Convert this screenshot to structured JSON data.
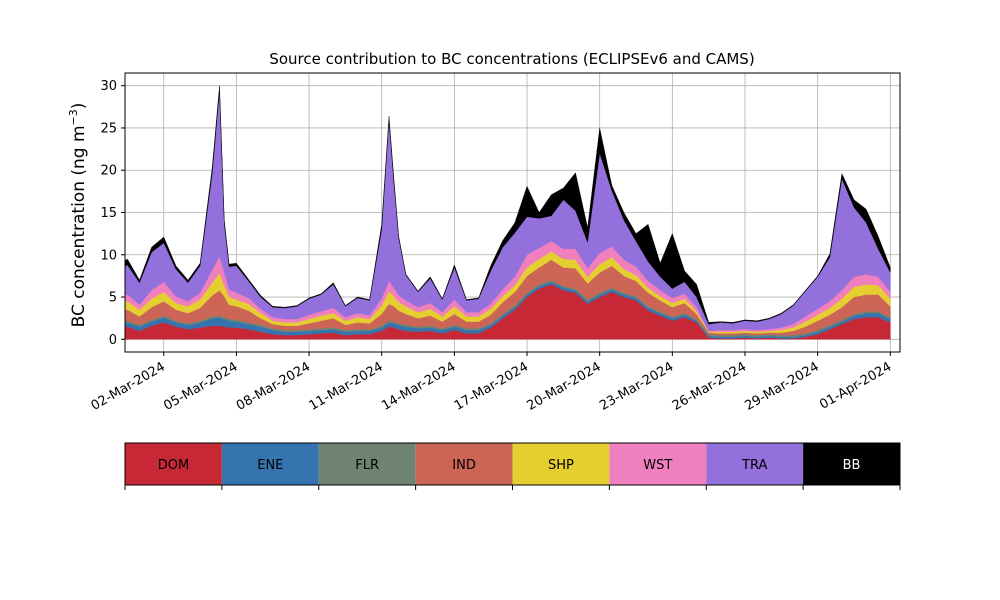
{
  "chart_data": {
    "type": "area",
    "title": "Source contribution to BC concentrations (ECLIPSEv6 and CAMS)",
    "xlabel": "",
    "ylabel": "BC concentration (ng m⁻³)",
    "ylabel_main": "BC concentration (ng m",
    "ylabel_sup": "−3",
    "ylabel_close": ")",
    "xlim": [
      -0.6,
      31.4
    ],
    "ylim": [
      -1.5,
      31.5
    ],
    "yticks": [
      0,
      5,
      10,
      15,
      20,
      25,
      30
    ],
    "xticks": [
      {
        "day": 1,
        "label": "02-Mar-2024"
      },
      {
        "day": 4,
        "label": "05-Mar-2024"
      },
      {
        "day": 7,
        "label": "08-Mar-2024"
      },
      {
        "day": 10,
        "label": "11-Mar-2024"
      },
      {
        "day": 13,
        "label": "14-Mar-2024"
      },
      {
        "day": 16,
        "label": "17-Mar-2024"
      },
      {
        "day": 19,
        "label": "20-Mar-2024"
      },
      {
        "day": 22,
        "label": "23-Mar-2024"
      },
      {
        "day": 25,
        "label": "26-Mar-2024"
      },
      {
        "day": 28,
        "label": "29-Mar-2024"
      },
      {
        "day": 31,
        "label": "01-Apr-2024"
      }
    ],
    "grid": true,
    "legend": "bottom colorbar",
    "x": [
      -0.9,
      -0.5,
      0,
      0.5,
      1,
      1.5,
      2,
      2.5,
      3,
      3.3,
      3.5,
      3.7,
      4,
      4.5,
      5,
      5.5,
      6,
      6.5,
      7,
      7.5,
      8,
      8.5,
      9,
      9.5,
      10,
      10.3,
      10.5,
      10.7,
      11,
      11.5,
      12,
      12.5,
      13,
      13.5,
      14,
      14.5,
      15,
      15.5,
      16,
      16.5,
      17,
      17.5,
      18,
      18.5,
      19,
      19.5,
      20,
      20.5,
      21,
      21.5,
      22,
      22.5,
      23,
      23.5,
      24,
      24.5,
      25,
      25.5,
      26,
      26.5,
      27,
      27.5,
      28,
      28.5,
      29,
      29.5,
      30,
      30.5,
      31
    ],
    "series": [
      {
        "name": "DOM",
        "color": "#c62836",
        "values": [
          1.5,
          1.5,
          1.0,
          1.6,
          2.0,
          1.5,
          1.2,
          1.4,
          1.6,
          1.6,
          1.5,
          1.4,
          1.4,
          1.2,
          0.9,
          0.6,
          0.5,
          0.5,
          0.6,
          0.7,
          0.8,
          0.5,
          0.6,
          0.6,
          1.0,
          1.5,
          1.4,
          1.2,
          1.0,
          0.9,
          1.0,
          0.7,
          1.1,
          0.7,
          0.7,
          1.4,
          2.5,
          3.5,
          5.0,
          6.0,
          6.5,
          5.8,
          5.5,
          4.2,
          5.0,
          5.6,
          5.0,
          4.6,
          3.4,
          2.8,
          2.2,
          2.6,
          2.0,
          0.2,
          0.1,
          0.1,
          0.2,
          0.1,
          0.2,
          0.1,
          0.1,
          0.3,
          0.6,
          1.2,
          1.8,
          2.4,
          2.6,
          2.6,
          2.0
        ]
      },
      {
        "name": "ENE",
        "color": "#3674b0",
        "values": [
          0.5,
          0.5,
          0.5,
          0.5,
          0.6,
          0.5,
          0.5,
          0.6,
          0.9,
          1.0,
          0.9,
          0.8,
          0.7,
          0.6,
          0.6,
          0.5,
          0.4,
          0.4,
          0.4,
          0.4,
          0.4,
          0.4,
          0.4,
          0.4,
          0.4,
          0.5,
          0.5,
          0.5,
          0.5,
          0.4,
          0.4,
          0.4,
          0.4,
          0.4,
          0.4,
          0.3,
          0.3,
          0.3,
          0.3,
          0.3,
          0.3,
          0.3,
          0.3,
          0.3,
          0.3,
          0.3,
          0.3,
          0.3,
          0.3,
          0.3,
          0.3,
          0.3,
          0.2,
          0.2,
          0.2,
          0.2,
          0.2,
          0.2,
          0.2,
          0.2,
          0.2,
          0.2,
          0.3,
          0.3,
          0.3,
          0.4,
          0.5,
          0.5,
          0.4
        ]
      },
      {
        "name": "FLR",
        "color": "#6f8373",
        "values": [
          0.2,
          0.2,
          0.2,
          0.2,
          0.2,
          0.2,
          0.2,
          0.2,
          0.2,
          0.2,
          0.2,
          0.2,
          0.2,
          0.2,
          0.2,
          0.2,
          0.2,
          0.2,
          0.2,
          0.2,
          0.2,
          0.2,
          0.2,
          0.2,
          0.2,
          0.2,
          0.2,
          0.2,
          0.2,
          0.2,
          0.2,
          0.2,
          0.2,
          0.2,
          0.2,
          0.2,
          0.2,
          0.2,
          0.2,
          0.2,
          0.2,
          0.2,
          0.2,
          0.2,
          0.2,
          0.2,
          0.2,
          0.2,
          0.2,
          0.2,
          0.2,
          0.2,
          0.2,
          0.2,
          0.2,
          0.2,
          0.2,
          0.2,
          0.2,
          0.2,
          0.2,
          0.2,
          0.2,
          0.2,
          0.2,
          0.2,
          0.2,
          0.2,
          0.2
        ]
      },
      {
        "name": "IND",
        "color": "#cc6556",
        "values": [
          1.2,
          1.3,
          1.0,
          1.5,
          1.7,
          1.3,
          1.2,
          1.5,
          2.5,
          3.0,
          2.5,
          1.7,
          1.6,
          1.4,
          0.8,
          0.5,
          0.5,
          0.5,
          0.7,
          0.9,
          1.1,
          0.6,
          0.8,
          0.7,
          1.4,
          2.0,
          1.8,
          1.5,
          1.3,
          1.0,
          1.2,
          0.8,
          1.3,
          0.8,
          0.8,
          1.0,
          1.4,
          1.6,
          2.0,
          2.0,
          2.4,
          2.2,
          2.4,
          1.9,
          2.4,
          2.6,
          2.0,
          1.8,
          1.6,
          1.3,
          1.1,
          1.2,
          0.6,
          0.2,
          0.2,
          0.2,
          0.2,
          0.2,
          0.2,
          0.3,
          0.5,
          0.8,
          1.1,
          1.2,
          1.5,
          2.0,
          2.0,
          2.0,
          1.3
        ]
      },
      {
        "name": "SHP",
        "color": "#e5ce2f",
        "values": [
          1.0,
          1.0,
          0.8,
          1.0,
          1.1,
          0.8,
          0.8,
          1.0,
          1.5,
          2.0,
          1.3,
          0.9,
          0.8,
          0.8,
          0.6,
          0.4,
          0.4,
          0.4,
          0.5,
          0.6,
          0.6,
          0.5,
          0.6,
          0.5,
          1.0,
          1.5,
          1.2,
          1.0,
          0.9,
          0.7,
          0.8,
          0.6,
          0.9,
          0.6,
          0.6,
          0.7,
          0.7,
          0.8,
          1.0,
          1.0,
          1.0,
          1.0,
          1.0,
          0.8,
          1.0,
          1.0,
          0.8,
          0.7,
          0.6,
          0.5,
          0.5,
          0.5,
          0.3,
          0.1,
          0.2,
          0.2,
          0.2,
          0.2,
          0.2,
          0.3,
          0.4,
          0.6,
          0.7,
          0.8,
          1.0,
          1.2,
          1.2,
          1.1,
          0.9
        ]
      },
      {
        "name": "WST",
        "color": "#f07fbe",
        "values": [
          0.8,
          0.8,
          0.6,
          1.0,
          1.2,
          0.8,
          0.6,
          0.8,
          1.5,
          2.0,
          1.5,
          0.9,
          0.8,
          0.7,
          0.5,
          0.4,
          0.4,
          0.4,
          0.5,
          0.5,
          0.6,
          0.4,
          0.5,
          0.4,
          0.8,
          1.2,
          1.0,
          0.8,
          0.7,
          0.6,
          0.7,
          0.5,
          0.8,
          0.5,
          0.5,
          0.6,
          0.8,
          1.0,
          1.5,
          1.3,
          1.2,
          1.2,
          1.3,
          1.0,
          1.3,
          1.3,
          1.1,
          1.0,
          0.8,
          0.7,
          0.6,
          0.6,
          0.5,
          0.1,
          0.2,
          0.2,
          0.2,
          0.2,
          0.2,
          0.3,
          0.4,
          0.6,
          0.7,
          0.8,
          1.0,
          1.2,
          1.2,
          1.0,
          0.8
        ]
      },
      {
        "name": "TRA",
        "color": "#9470dc",
        "values": [
          2.8,
          3.5,
          2.6,
          4.5,
          4.6,
          3.2,
          2.2,
          3.2,
          11.4,
          19.6,
          5.7,
          2.7,
          3.2,
          2.0,
          1.4,
          1.2,
          1.3,
          1.5,
          1.9,
          2.0,
          2.8,
          1.3,
          1.8,
          1.8,
          8.2,
          19.0,
          12.5,
          6.8,
          3.0,
          1.8,
          2.9,
          1.5,
          3.8,
          1.4,
          1.6,
          3.9,
          5.0,
          5.2,
          4.5,
          3.5,
          3.0,
          5.8,
          4.5,
          3.1,
          11.8,
          6.6,
          4.7,
          3.0,
          2.3,
          1.6,
          1.1,
          1.4,
          1.2,
          0.8,
          0.9,
          0.8,
          1.0,
          1.0,
          1.2,
          1.6,
          2.2,
          3.0,
          3.8,
          5.2,
          13.2,
          8.2,
          6.1,
          3.3,
          2.3
        ]
      },
      {
        "name": "BB",
        "color": "#000000",
        "values": [
          0.6,
          0.7,
          0.3,
          0.6,
          0.7,
          0.4,
          0.3,
          0.3,
          0.7,
          0.6,
          0.5,
          0.3,
          0.3,
          0.2,
          0.2,
          0.1,
          0.1,
          0.1,
          0.1,
          0.1,
          0.2,
          0.1,
          0.1,
          0.1,
          0.6,
          0.5,
          0.5,
          0.2,
          0.1,
          0.1,
          0.2,
          0.1,
          0.3,
          0.1,
          0.1,
          0.6,
          0.8,
          1.2,
          3.6,
          0.7,
          2.5,
          1.4,
          4.5,
          1.7,
          3.0,
          0.6,
          0.9,
          0.9,
          4.4,
          1.6,
          6.5,
          1.3,
          1.5,
          0.2,
          0.1,
          0.1,
          0.1,
          0.1,
          0.1,
          0.1,
          0.1,
          0.1,
          0.1,
          0.4,
          0.6,
          0.9,
          1.6,
          1.5,
          0.6
        ]
      }
    ]
  }
}
